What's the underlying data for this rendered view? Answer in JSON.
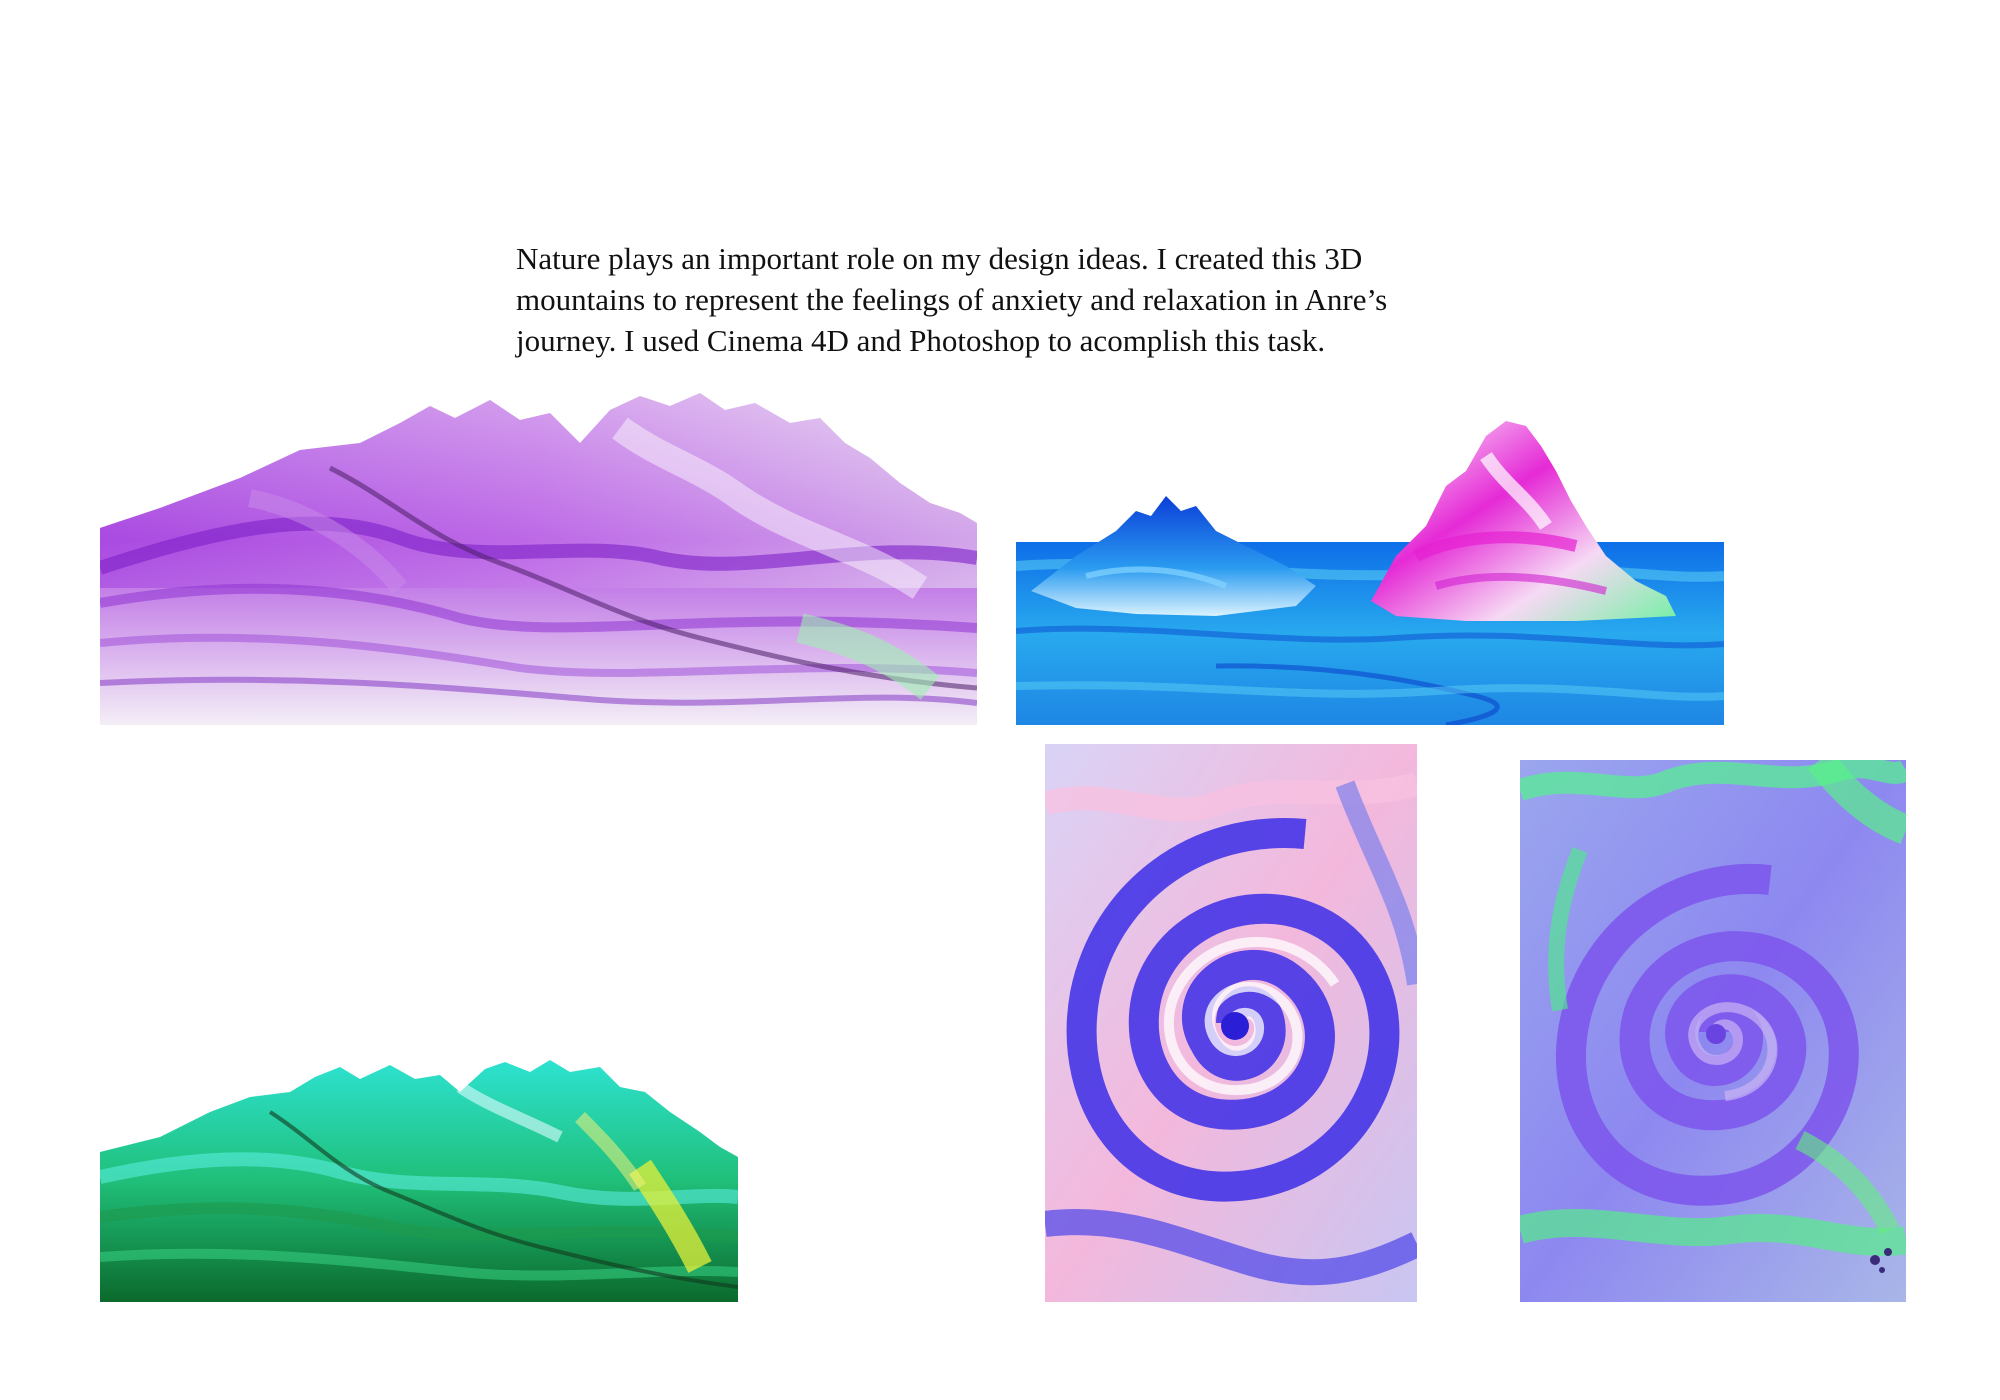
{
  "caption": {
    "lines": [
      "Nature plays an important role on my design ideas. I created this 3D",
      "mountains to represent the feelings of anxiety and relaxation in Anre’s",
      "journey. I used Cinema 4D and Photoshop to acomplish this task."
    ]
  },
  "artworks": [
    {
      "name": "purple-mountain-render",
      "palette": [
        "#8e2bd6",
        "#c46be8",
        "#f2e8f7",
        "#b9f2c8"
      ]
    },
    {
      "name": "blue-sea-islands-render",
      "palette": [
        "#0a64e6",
        "#31c3f2",
        "#e42fd9",
        "#ffffff"
      ]
    },
    {
      "name": "green-mountain-render",
      "palette": [
        "#0d7c3a",
        "#2ce0d0",
        "#52f06a",
        "#d8f232"
      ]
    },
    {
      "name": "pink-blue-swirl",
      "palette": [
        "#3b2ce6",
        "#f3b5da",
        "#ffffff",
        "#7b8ef0"
      ]
    },
    {
      "name": "violet-green-swirl",
      "palette": [
        "#7a5af0",
        "#9aa8ee",
        "#4ff08e",
        "#b496f2"
      ]
    }
  ]
}
